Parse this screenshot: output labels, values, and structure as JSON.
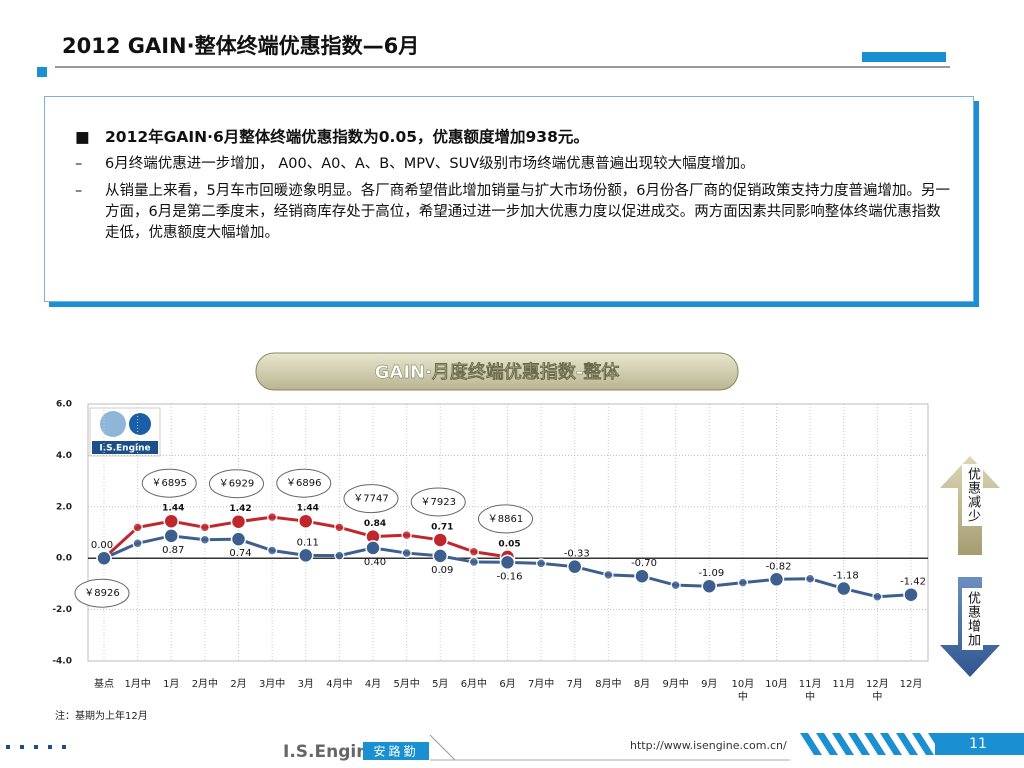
{
  "header": {
    "title": "2012 GAIN·整体终端优惠指数—6月"
  },
  "summary": {
    "headline": "2012年GAIN·6月整体终端优惠指数为0.05，优惠额度增加938元。",
    "points": [
      "6月终端优惠进一步增加， A00、A0、A、B、MPV、SUV级别市场终端优惠普遍出现较大幅度增加。",
      "从销量上来看，5月车市回暖迹象明显。各厂商希望借此增加销量与扩大市场份额，6月份各厂商的促销政策支持力度普遍增加。另一方面，6月是第二季度末，经销商库存处于高位，希望通过进一步加大优惠力度以促进成交。两方面因素共同影响整体终端优惠指数走低，优惠额度大幅增加。"
    ]
  },
  "chart_data": {
    "type": "line",
    "title": "GAIN·月度终端优惠指数-整体",
    "logo": "I.S.Engine",
    "categories": [
      "基点",
      "1月中",
      "1月",
      "2月中",
      "2月",
      "3月中",
      "3月",
      "4月中",
      "4月",
      "5月中",
      "5月",
      "6月中",
      "6月",
      "7月中",
      "7月",
      "8月中",
      "8月",
      "9月中",
      "9月",
      "10月中",
      "10月",
      "11月中",
      "11月",
      "12月中",
      "12月"
    ],
    "series": [
      {
        "color": "#c0272d",
        "values": [
          0.0,
          1.2,
          1.44,
          1.2,
          1.42,
          1.6,
          1.44,
          1.2,
          0.84,
          0.9,
          0.71,
          0.25,
          0.05,
          null,
          null,
          null,
          null,
          null,
          null,
          null,
          null,
          null,
          null,
          null,
          null
        ],
        "value_labels": [
          null,
          null,
          "1.44",
          null,
          "1.42",
          null,
          "1.44",
          null,
          "0.84",
          null,
          "0.71",
          null,
          "0.05",
          null,
          null,
          null,
          null,
          null,
          null,
          null,
          null,
          null,
          null,
          null,
          null
        ]
      },
      {
        "color": "#3d5f8f",
        "values": [
          0.0,
          0.58,
          0.87,
          0.72,
          0.74,
          0.3,
          0.11,
          0.1,
          0.4,
          0.2,
          0.09,
          -0.15,
          -0.16,
          -0.2,
          -0.33,
          -0.65,
          -0.7,
          -1.05,
          -1.09,
          -0.95,
          -0.82,
          -0.8,
          -1.18,
          -1.5,
          -1.42
        ],
        "value_labels": [
          "0.00",
          null,
          "0.87",
          null,
          "0.74",
          null,
          "0.11",
          null,
          "0.40",
          null,
          "0.09",
          null,
          "-0.16",
          null,
          "-0.33",
          null,
          "-0.70",
          null,
          "-1.09",
          null,
          "-0.82",
          null,
          "-1.18",
          null,
          "-1.42"
        ]
      }
    ],
    "price_labels": [
      "￥8926",
      null,
      "￥6895",
      null,
      "￥6929",
      null,
      "￥6896",
      null,
      "￥7747",
      null,
      "￥7923",
      null,
      "￥8861",
      null,
      null,
      null,
      null,
      null,
      null,
      null,
      null,
      null,
      null,
      null,
      null
    ],
    "ylim": [
      -4,
      6
    ],
    "yticks": [
      {
        "value": 6,
        "label": "6.0"
      },
      {
        "value": 4,
        "label": "4.0"
      },
      {
        "value": 2,
        "label": "2.0"
      },
      {
        "value": 0,
        "label": "0.0"
      },
      {
        "value": -2,
        "label": "-2.0"
      },
      {
        "value": -4,
        "label": "-4.0"
      }
    ],
    "grid": true,
    "up_label": "优惠减少",
    "down_label": "优惠增加",
    "note": "注：基期为上年12月"
  },
  "footer": {
    "brand": "I.S.Engine",
    "cn_brand": "安路勤",
    "url": "http://www.isengine.com.cn/",
    "page": "11"
  }
}
